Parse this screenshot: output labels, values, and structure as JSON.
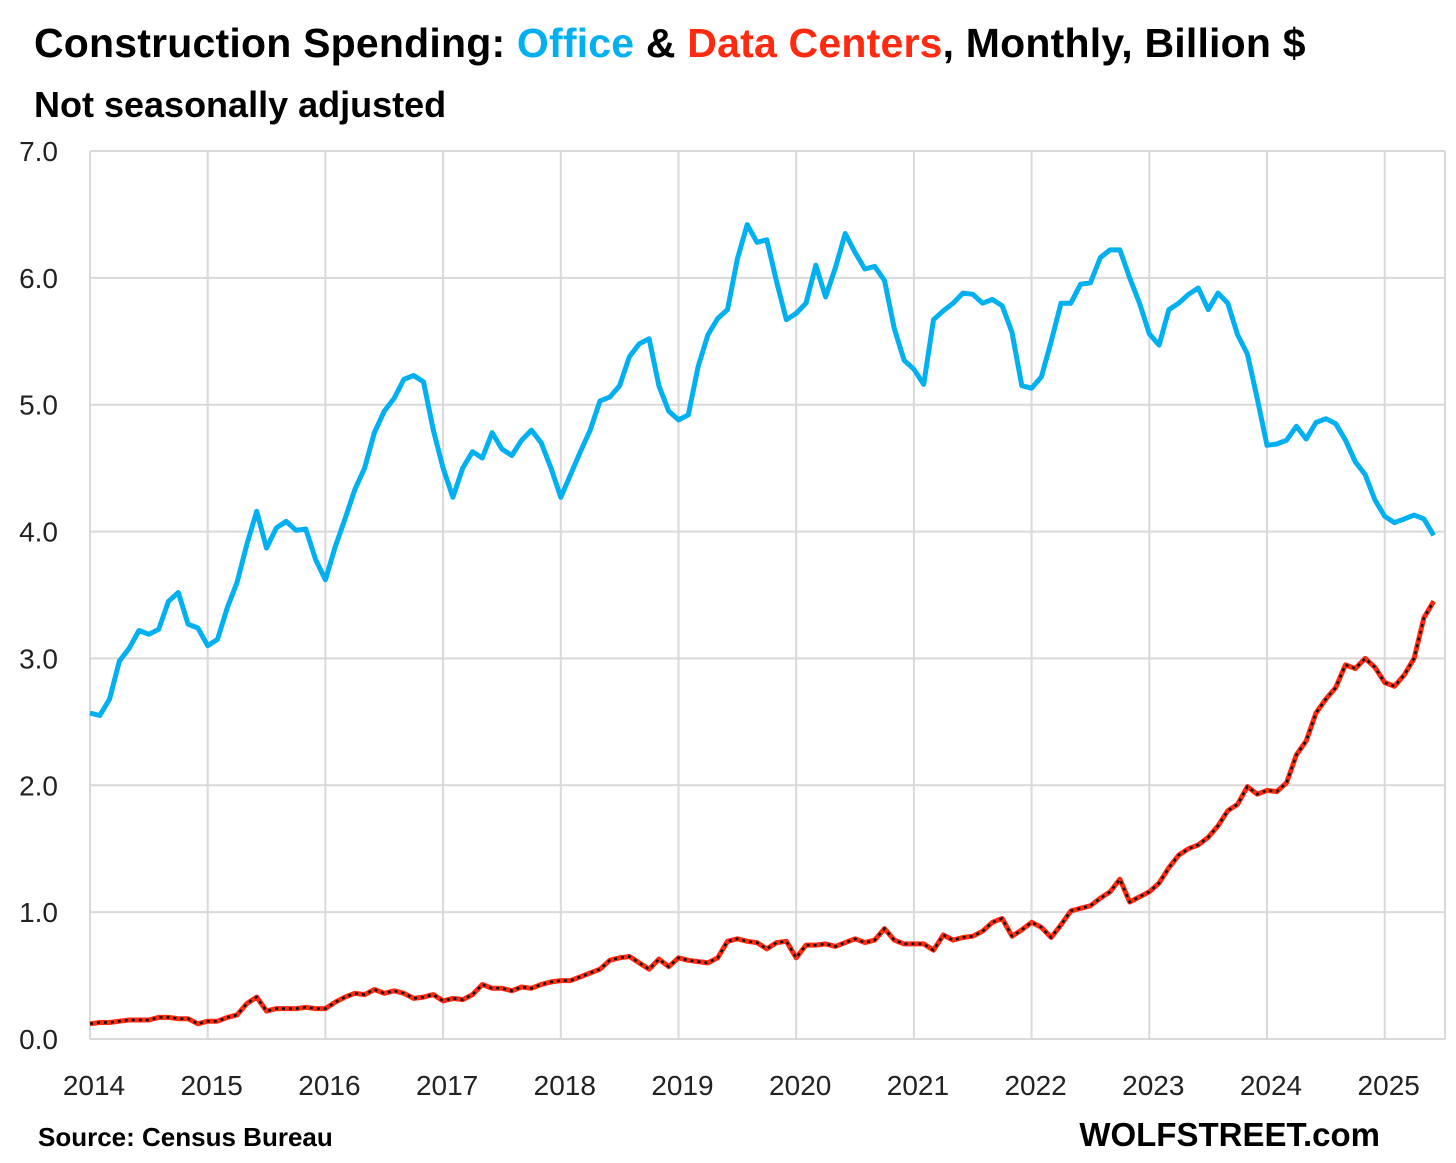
{
  "chart_data": {
    "type": "line",
    "title_parts": [
      "Construction Spending: ",
      "Office",
      " & ",
      "Data Centers",
      ", Monthly, Billion $"
    ],
    "subtitle": "Not seasonally adjusted",
    "xlabel": "",
    "ylabel": "",
    "x_start": "2014-01",
    "x_frequency": "monthly",
    "ylim": [
      0,
      7
    ],
    "y_ticks": [
      "0.0",
      "1.0",
      "2.0",
      "3.0",
      "4.0",
      "5.0",
      "6.0",
      "7.0"
    ],
    "x_ticks": [
      "2014",
      "2015",
      "2016",
      "2017",
      "2018",
      "2019",
      "2020",
      "2021",
      "2022",
      "2023",
      "2024",
      "2025"
    ],
    "grid": true,
    "source": "Source: Census Bureau",
    "brand": "WOLFSTREET.com",
    "series": [
      {
        "name": "Office",
        "color": "#00B0F0",
        "values": [
          2.57,
          2.55,
          2.68,
          2.98,
          3.08,
          3.22,
          3.19,
          3.23,
          3.45,
          3.52,
          3.27,
          3.24,
          3.1,
          3.15,
          3.4,
          3.6,
          3.9,
          4.16,
          3.87,
          4.03,
          4.08,
          4.01,
          4.02,
          3.78,
          3.62,
          3.88,
          4.1,
          4.33,
          4.5,
          4.78,
          4.95,
          5.05,
          5.2,
          5.23,
          5.18,
          4.8,
          4.5,
          4.27,
          4.5,
          4.63,
          4.58,
          4.78,
          4.65,
          4.6,
          4.72,
          4.8,
          4.7,
          4.5,
          4.27,
          4.45,
          4.63,
          4.8,
          5.03,
          5.06,
          5.15,
          5.38,
          5.48,
          5.52,
          5.15,
          4.95,
          4.88,
          4.92,
          5.3,
          5.55,
          5.68,
          5.75,
          6.15,
          6.42,
          6.28,
          6.3,
          5.97,
          5.67,
          5.72,
          5.8,
          6.1,
          5.85,
          6.08,
          6.35,
          6.2,
          6.07,
          6.09,
          5.98,
          5.6,
          5.35,
          5.28,
          5.16,
          5.67,
          5.74,
          5.8,
          5.88,
          5.87,
          5.8,
          5.83,
          5.78,
          5.57,
          5.15,
          5.13,
          5.22,
          5.5,
          5.8,
          5.8,
          5.95,
          5.96,
          6.16,
          6.22,
          6.22,
          6.0,
          5.8,
          5.56,
          5.47,
          5.75,
          5.8,
          5.87,
          5.92,
          5.75,
          5.88,
          5.8,
          5.55,
          5.4,
          5.05,
          4.68,
          4.69,
          4.72,
          4.83,
          4.73,
          4.86,
          4.89,
          4.85,
          4.72,
          4.55,
          4.45,
          4.25,
          4.12,
          4.07,
          4.1,
          4.13,
          4.1,
          3.97
        ]
      },
      {
        "name": "Data Centers",
        "color": "#FF2A10",
        "values": [
          0.12,
          0.13,
          0.13,
          0.14,
          0.15,
          0.15,
          0.15,
          0.17,
          0.17,
          0.16,
          0.16,
          0.12,
          0.14,
          0.14,
          0.17,
          0.19,
          0.28,
          0.33,
          0.22,
          0.24,
          0.24,
          0.24,
          0.25,
          0.24,
          0.24,
          0.29,
          0.33,
          0.36,
          0.35,
          0.39,
          0.36,
          0.38,
          0.36,
          0.32,
          0.33,
          0.35,
          0.3,
          0.32,
          0.31,
          0.35,
          0.43,
          0.4,
          0.4,
          0.38,
          0.41,
          0.4,
          0.43,
          0.45,
          0.46,
          0.46,
          0.49,
          0.52,
          0.55,
          0.62,
          0.64,
          0.65,
          0.6,
          0.55,
          0.63,
          0.57,
          0.64,
          0.62,
          0.61,
          0.6,
          0.64,
          0.77,
          0.79,
          0.77,
          0.76,
          0.71,
          0.76,
          0.77,
          0.64,
          0.74,
          0.74,
          0.75,
          0.73,
          0.76,
          0.79,
          0.76,
          0.78,
          0.87,
          0.78,
          0.75,
          0.75,
          0.75,
          0.7,
          0.82,
          0.78,
          0.8,
          0.81,
          0.85,
          0.92,
          0.95,
          0.81,
          0.86,
          0.92,
          0.88,
          0.8,
          0.9,
          1.01,
          1.03,
          1.05,
          1.11,
          1.16,
          1.26,
          1.08,
          1.12,
          1.16,
          1.23,
          1.35,
          1.45,
          1.5,
          1.53,
          1.59,
          1.68,
          1.8,
          1.85,
          1.99,
          1.93,
          1.96,
          1.95,
          2.02,
          2.24,
          2.35,
          2.57,
          2.68,
          2.77,
          2.95,
          2.92,
          3.0,
          2.93,
          2.81,
          2.78,
          2.87,
          3.0,
          3.32,
          3.45
        ]
      }
    ]
  }
}
